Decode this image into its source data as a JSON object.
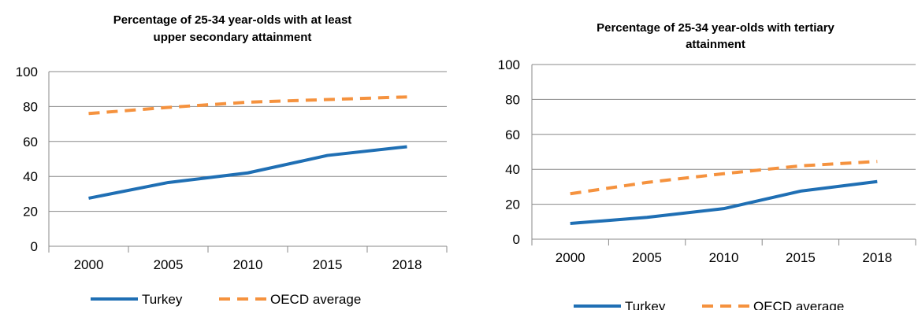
{
  "chart_data": [
    {
      "type": "line",
      "title": "Percentage of 25-34 year-olds with at least upper secondary attainment",
      "title_lines": [
        "Percentage of 25-34 year-olds with at least",
        "upper secondary attainment"
      ],
      "categories": [
        "2000",
        "2005",
        "2010",
        "2015",
        "2018"
      ],
      "ylim": [
        0,
        100
      ],
      "yticks": [
        "0",
        "20",
        "40",
        "60",
        "80",
        "100"
      ],
      "grid": true,
      "legend_position": "bottom",
      "series": [
        {
          "name": "Turkey",
          "values": [
            27.5,
            36.5,
            42,
            52,
            57
          ],
          "color": "#1f6fb4",
          "dash": "solid"
        },
        {
          "name": "OECD average",
          "values": [
            76,
            79.5,
            82.5,
            84,
            85.5
          ],
          "color": "#f5923e",
          "dash": "dashed"
        }
      ]
    },
    {
      "type": "line",
      "title": "Percentage of 25-34 year-olds with tertiary attainment",
      "title_lines": [
        "Percentage of 25-34 year-olds with tertiary",
        "attainment"
      ],
      "categories": [
        "2000",
        "2005",
        "2010",
        "2015",
        "2018"
      ],
      "ylim": [
        0,
        100
      ],
      "yticks": [
        "0",
        "20",
        "40",
        "60",
        "80",
        "100"
      ],
      "grid": true,
      "legend_position": "bottom",
      "series": [
        {
          "name": "Turkey",
          "values": [
            9,
            12.5,
            17.5,
            27.5,
            33
          ],
          "color": "#1f6fb4",
          "dash": "solid"
        },
        {
          "name": "OECD average",
          "values": [
            26,
            32.5,
            37.5,
            42,
            44.5
          ],
          "color": "#f5923e",
          "dash": "dashed"
        }
      ]
    }
  ]
}
